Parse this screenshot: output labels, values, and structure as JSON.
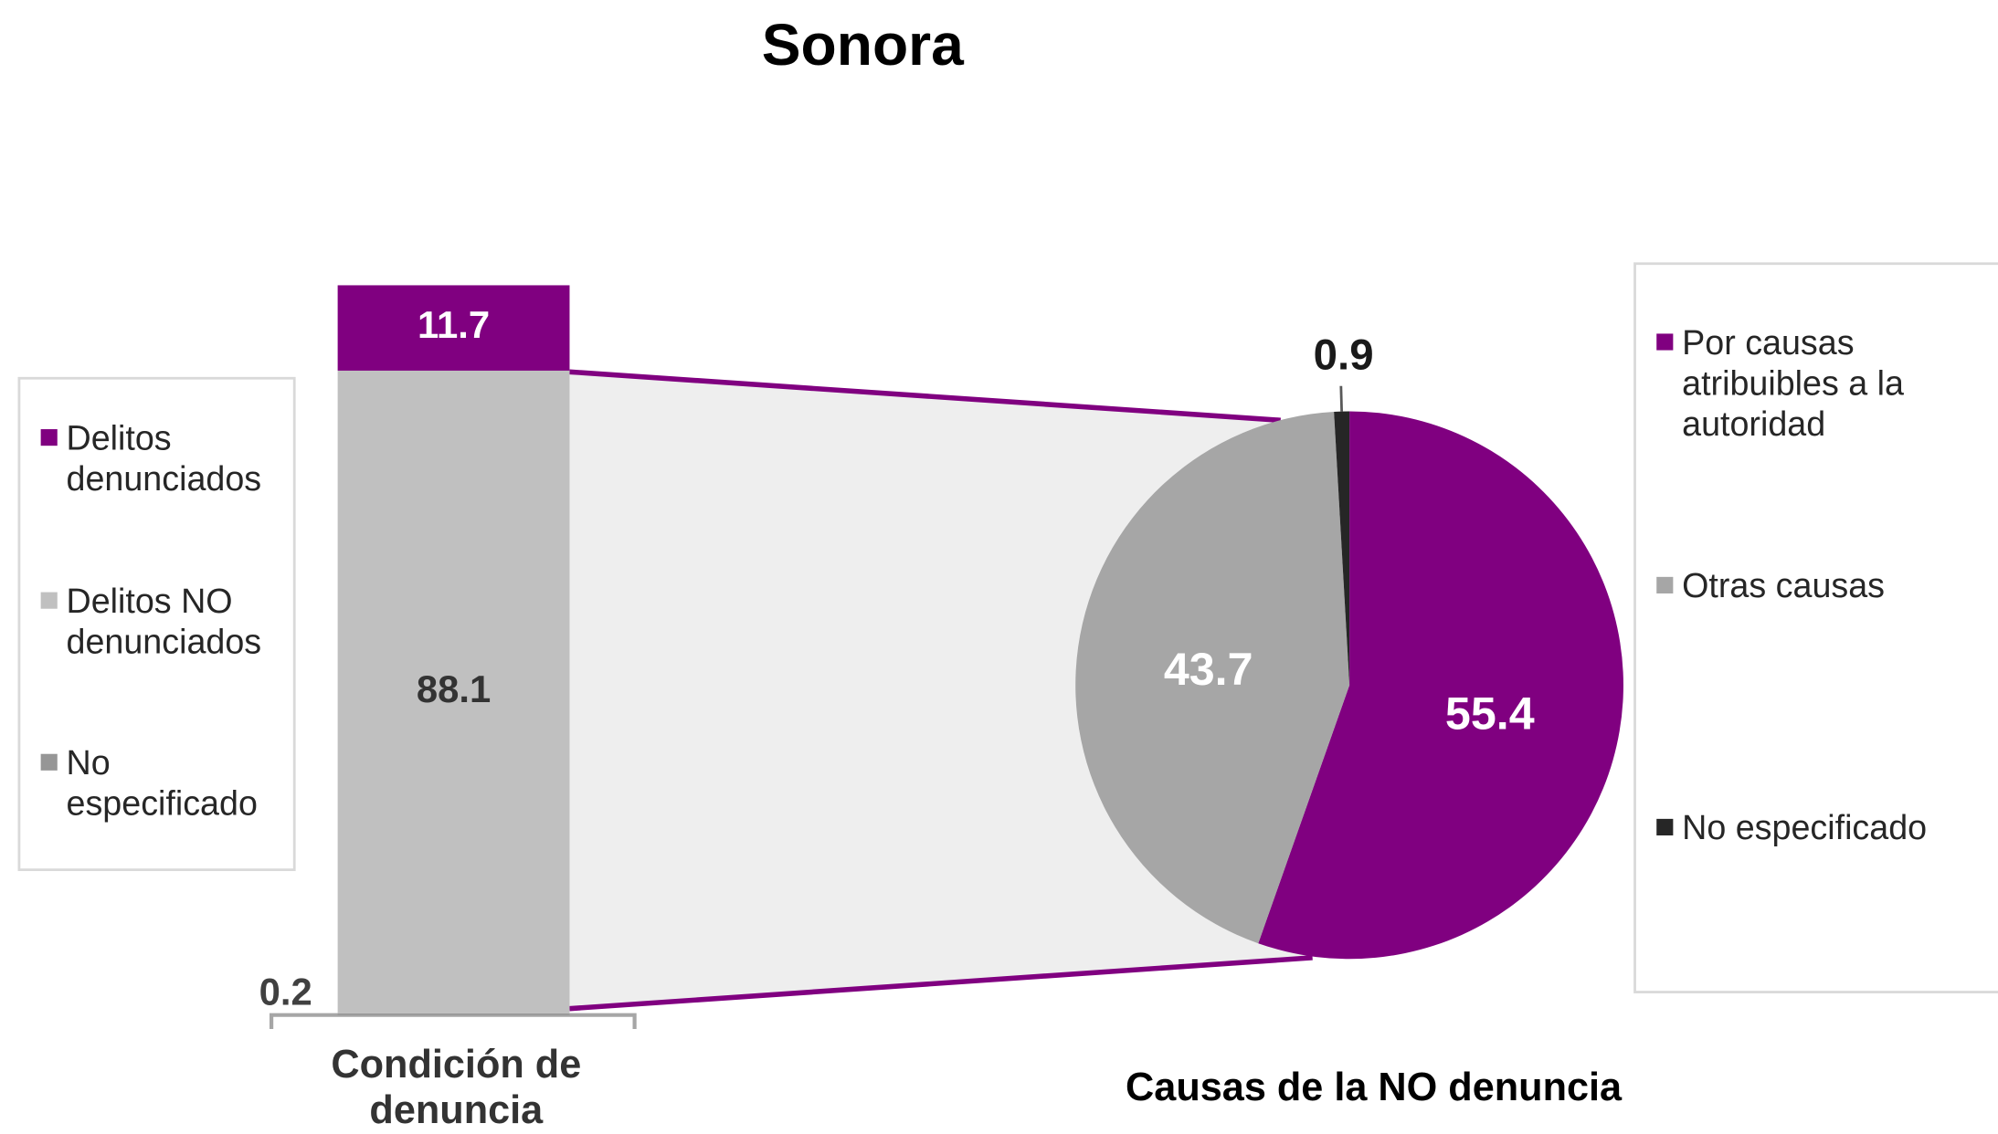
{
  "chart_data": [
    {
      "type": "bar",
      "title": "Sonora",
      "categories": [
        "Condición de denuncia"
      ],
      "series": [
        {
          "name": "Delitos denunciados",
          "color": "#800080",
          "values": [
            11.7
          ]
        },
        {
          "name": "Delitos NO denunciados",
          "color": "#c0c0c0",
          "values": [
            88.1
          ]
        },
        {
          "name": "No especificado",
          "color": "#969696",
          "values": [
            0.2
          ]
        }
      ],
      "ylim": [
        0,
        100
      ],
      "stacked": true
    },
    {
      "type": "pie",
      "title": "Causas de la NO denuncia",
      "labels": [
        "Por causas atribuibles a la autoridad",
        "Otras causas",
        "No especificado"
      ],
      "values": [
        55.4,
        43.7,
        0.9
      ],
      "colors": [
        "#800080",
        "#a6a6a6",
        "#262626"
      ]
    }
  ]
}
